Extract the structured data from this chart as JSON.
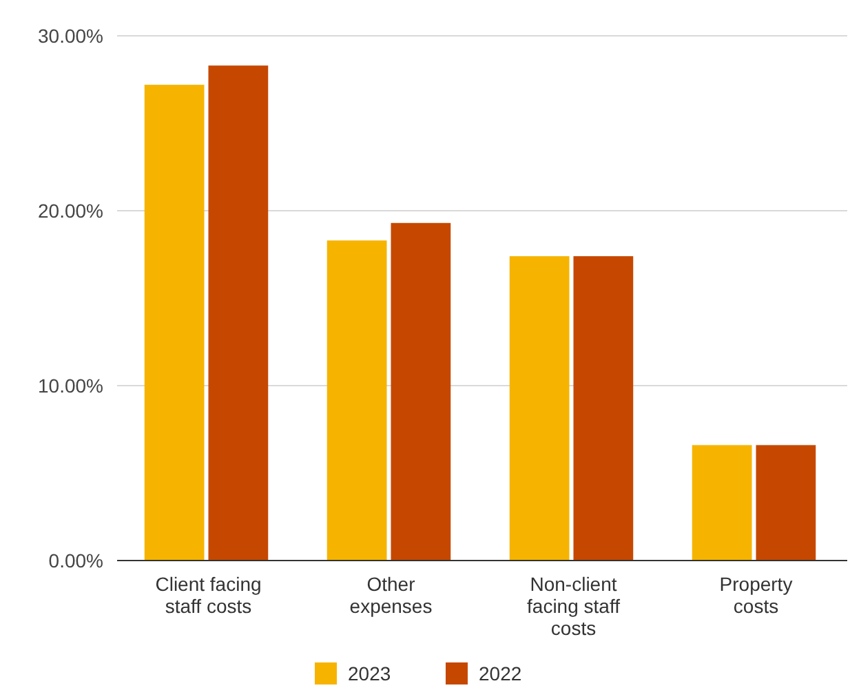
{
  "chart_data": {
    "type": "bar",
    "categories": [
      "Client facing staff costs",
      "Other expenses",
      "Non-client facing staff costs",
      "Property costs"
    ],
    "series": [
      {
        "name": "2023",
        "color": "#f6b400",
        "values": [
          27.2,
          18.3,
          17.4,
          6.6
        ]
      },
      {
        "name": "2022",
        "color": "#c64800",
        "values": [
          28.3,
          19.3,
          17.4,
          6.6
        ]
      }
    ],
    "ylim": [
      0,
      30
    ],
    "yticks": [
      {
        "value": 0,
        "label": "0.00%"
      },
      {
        "value": 10,
        "label": "10.00%"
      },
      {
        "value": 20,
        "label": "20.00%"
      },
      {
        "value": 30,
        "label": "30.00%"
      }
    ],
    "grid": "y",
    "legend": "bottom"
  }
}
